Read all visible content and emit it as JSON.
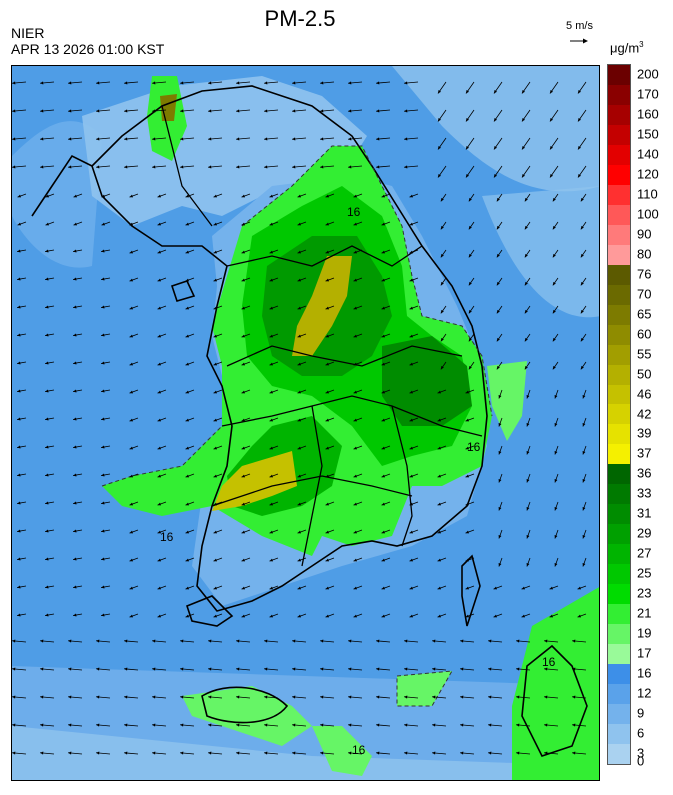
{
  "title": "PM-2.5",
  "org": "NIER",
  "datetime": "APR 13 2026 01:00 KST",
  "wind_reference": "5 m/s",
  "unit": "μg/m",
  "unit_sup": "3",
  "contour_label": "16",
  "colorbar": [
    {
      "label": "200",
      "color": "#6b0000"
    },
    {
      "label": "170",
      "color": "#8a0000"
    },
    {
      "label": "160",
      "color": "#a60000"
    },
    {
      "label": "150",
      "color": "#c40000"
    },
    {
      "label": "140",
      "color": "#e30000"
    },
    {
      "label": "120",
      "color": "#ff0000"
    },
    {
      "label": "110",
      "color": "#ff3030"
    },
    {
      "label": "100",
      "color": "#ff5858"
    },
    {
      "label": "90",
      "color": "#ff7a7a"
    },
    {
      "label": "80",
      "color": "#ff9a9a"
    },
    {
      "label": "76",
      "color": "#5c5a00"
    },
    {
      "label": "70",
      "color": "#6b6a00"
    },
    {
      "label": "65",
      "color": "#7d7b00"
    },
    {
      "label": "60",
      "color": "#8f8c00"
    },
    {
      "label": "55",
      "color": "#a29e00"
    },
    {
      "label": "50",
      "color": "#b4b000"
    },
    {
      "label": "46",
      "color": "#c5c100"
    },
    {
      "label": "42",
      "color": "#d6d200"
    },
    {
      "label": "39",
      "color": "#e6e200"
    },
    {
      "label": "37",
      "color": "#f5f000"
    },
    {
      "label": "36",
      "color": "#006600"
    },
    {
      "label": "33",
      "color": "#007a00"
    },
    {
      "label": "31",
      "color": "#008c00"
    },
    {
      "label": "29",
      "color": "#00a000"
    },
    {
      "label": "27",
      "color": "#00b400"
    },
    {
      "label": "25",
      "color": "#00c800"
    },
    {
      "label": "23",
      "color": "#00dc00"
    },
    {
      "label": "21",
      "color": "#33ee33"
    },
    {
      "label": "19",
      "color": "#66f566"
    },
    {
      "label": "17",
      "color": "#99fa99"
    },
    {
      "label": "16",
      "color": "#3d8fe8"
    },
    {
      "label": "12",
      "color": "#5aa2ea"
    },
    {
      "label": "9",
      "color": "#74b2ec"
    },
    {
      "label": "6",
      "color": "#8fc3ee"
    },
    {
      "label": "3",
      "color": "#aad2f0"
    },
    {
      "label": "0",
      "color": "#aad2f0"
    }
  ]
}
